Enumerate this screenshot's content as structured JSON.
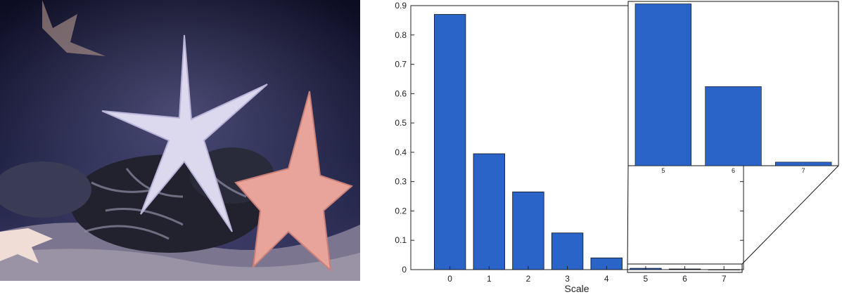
{
  "photo": {
    "subject": "starfish-aquarium-photo"
  },
  "colors": {
    "bar": "#2a64c9",
    "axis": "#222222"
  },
  "chart_data": {
    "type": "bar",
    "categories": [
      "0",
      "1",
      "2",
      "3",
      "4",
      "5",
      "6",
      "7"
    ],
    "values": [
      0.87,
      0.395,
      0.265,
      0.125,
      0.04,
      0.0045,
      0.0022,
      0.0001
    ],
    "xlabel": "Scale",
    "ylabel": "",
    "ylim": [
      0,
      0.9
    ],
    "yticks": [
      "0",
      "0.1",
      "0.2",
      "0.3",
      "0.4",
      "0.5",
      "0.6",
      "0.7",
      "0.8",
      "0.9"
    ],
    "grid": false,
    "inset": {
      "categories": [
        "5",
        "6",
        "7"
      ],
      "values": [
        0.0045,
        0.0022,
        0.0001
      ],
      "zoom_of": "bars 5-7"
    }
  }
}
